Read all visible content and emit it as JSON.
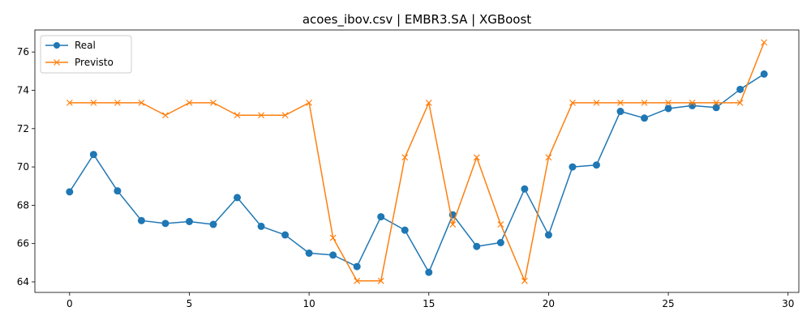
{
  "chart_data": {
    "type": "line",
    "title": "acoes_ibov.csv | EMBR3.SA | XGBoost",
    "xlabel": "",
    "ylabel": "",
    "xlim": [
      -1.45,
      30.45
    ],
    "ylim": [
      63.45,
      77.15
    ],
    "x_ticks": [
      0,
      5,
      10,
      15,
      20,
      25,
      30
    ],
    "y_ticks": [
      64,
      66,
      68,
      70,
      72,
      74,
      76
    ],
    "grid": false,
    "legend_position": "upper-left",
    "x": [
      0,
      1,
      2,
      3,
      4,
      5,
      6,
      7,
      8,
      9,
      10,
      11,
      12,
      13,
      14,
      15,
      16,
      17,
      18,
      19,
      20,
      21,
      22,
      23,
      24,
      25,
      26,
      27,
      28,
      29
    ],
    "series": [
      {
        "name": "Real",
        "color": "#1f77b4",
        "marker": "circle",
        "values": [
          68.7,
          70.65,
          68.75,
          67.2,
          67.05,
          67.15,
          67.0,
          68.4,
          66.9,
          66.45,
          65.5,
          65.4,
          64.8,
          67.4,
          66.7,
          64.5,
          67.5,
          65.85,
          66.05,
          68.85,
          66.45,
          70.0,
          70.1,
          72.9,
          72.55,
          73.05,
          73.2,
          73.1,
          74.05,
          74.85
        ]
      },
      {
        "name": "Previsto",
        "color": "#ff7f0e",
        "marker": "x",
        "values": [
          73.35,
          73.35,
          73.35,
          73.35,
          72.7,
          73.35,
          73.35,
          72.7,
          72.7,
          72.7,
          73.35,
          66.3,
          64.05,
          64.05,
          70.5,
          73.35,
          67.0,
          70.5,
          67.0,
          64.05,
          70.5,
          73.35,
          73.35,
          73.35,
          73.35,
          73.35,
          73.35,
          73.35,
          73.35,
          76.5
        ]
      }
    ]
  }
}
